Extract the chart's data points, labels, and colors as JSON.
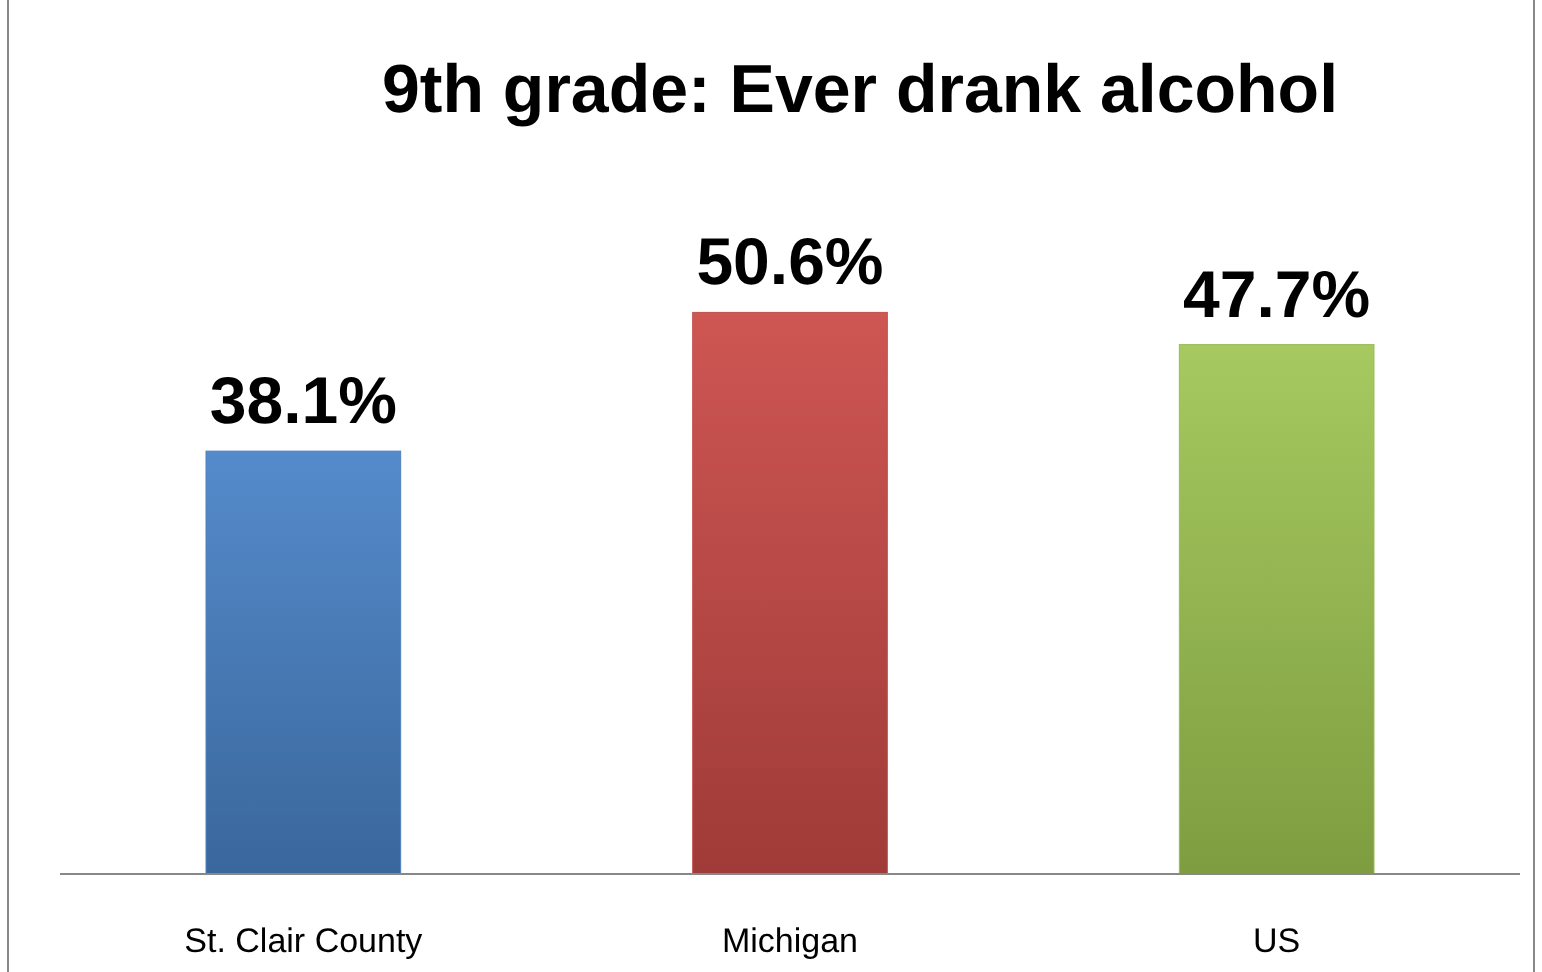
{
  "chart_data": {
    "type": "bar",
    "title": "9th grade: Ever drank alcohol",
    "categories": [
      "St. Clair County",
      "Michigan",
      "US"
    ],
    "values": [
      38.1,
      50.6,
      47.7
    ],
    "colors": [
      "#4f81bd",
      "#c0504d",
      "#9bbb59"
    ],
    "value_labels": [
      "38.1%",
      "50.6%",
      "47.7%"
    ],
    "tick_labels": "x"
  }
}
